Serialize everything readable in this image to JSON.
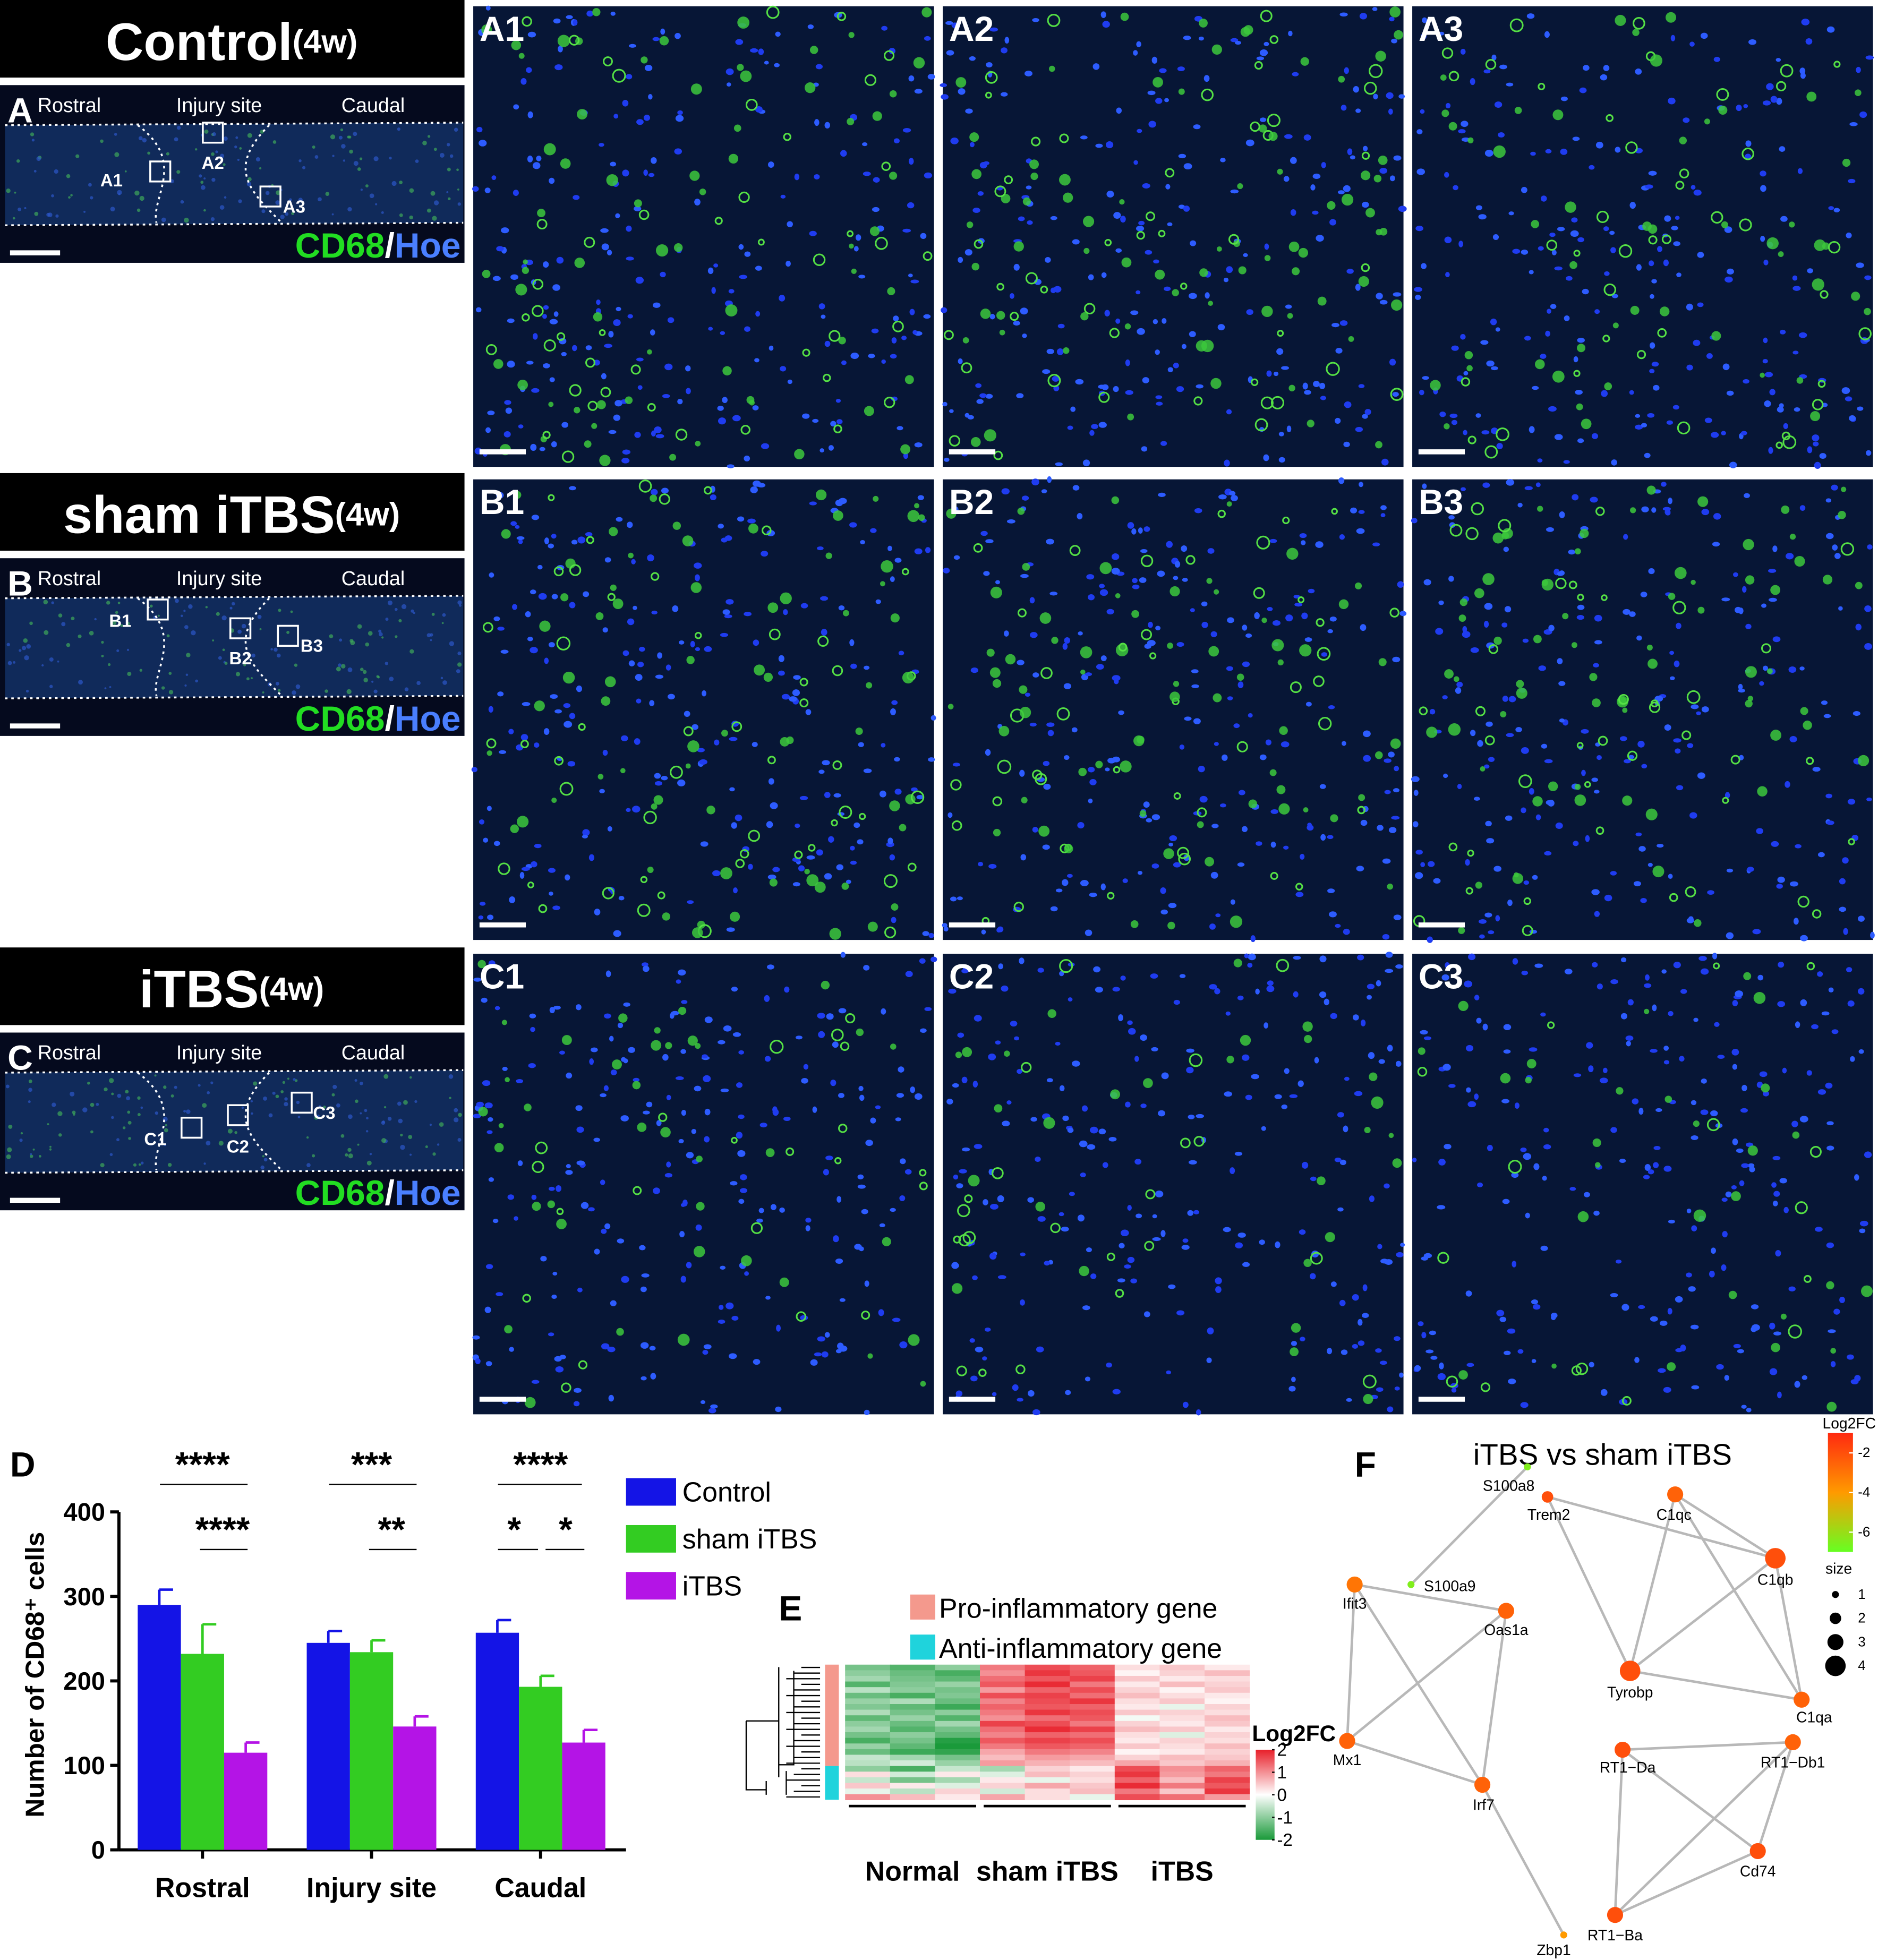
{
  "rows": [
    {
      "title": "Control",
      "suffix": "(4w)",
      "letter": "A",
      "regions": [
        "Rostral",
        "Injury site",
        "Caudal"
      ],
      "boxes": [
        "A1",
        "A2",
        "A3"
      ],
      "stain": [
        "CD68",
        "/",
        "Hoe"
      ],
      "micrographs": [
        "A1",
        "A2",
        "A3"
      ]
    },
    {
      "title": "sham iTBS",
      "suffix": "(4w)",
      "letter": "B",
      "regions": [
        "Rostral",
        "Injury site",
        "Caudal"
      ],
      "boxes": [
        "B1",
        "B2",
        "B3"
      ],
      "stain": [
        "CD68",
        "/",
        "Hoe"
      ],
      "micrographs": [
        "B1",
        "B2",
        "B3"
      ]
    },
    {
      "title": "iTBS",
      "suffix": "(4w)",
      "letter": "C",
      "regions": [
        "Rostral",
        "Injury site",
        "Caudal"
      ],
      "boxes": [
        "C1",
        "C2",
        "C3"
      ],
      "stain": [
        "CD68",
        "/",
        "Hoe"
      ],
      "micrographs": [
        "C1",
        "C2",
        "C3"
      ]
    }
  ],
  "chart_data": [
    {
      "type": "bar",
      "label": "D",
      "ylabel": "Number of CD68⁺ cells",
      "categories": [
        "Rostral",
        "Injury site",
        "Caudal"
      ],
      "series": [
        {
          "name": "Control",
          "color": "#1414e6",
          "values": [
            290,
            245,
            257
          ],
          "errors": [
            18,
            14,
            15
          ]
        },
        {
          "name": "sham iTBS",
          "color": "#33cc22",
          "values": [
            232,
            234,
            193
          ],
          "errors": [
            35,
            14,
            13
          ]
        },
        {
          "name": "iTBS",
          "color": "#b414e6",
          "values": [
            115,
            146,
            127
          ],
          "errors": [
            12,
            12,
            15
          ]
        }
      ],
      "significance": [
        [
          "****",
          "****"
        ],
        [
          "***",
          "**"
        ],
        [
          "****",
          "*",
          "*"
        ]
      ],
      "ylim": [
        0,
        400
      ],
      "yticks": [
        0,
        100,
        200,
        300,
        400
      ]
    },
    {
      "type": "heatmap",
      "label": "E",
      "categories": [
        "Normal",
        "sham iTBS",
        "iTBS"
      ],
      "colorbar_label": "Log2FC",
      "zlim": [
        -2,
        2
      ],
      "zticks": [
        2,
        1,
        0,
        -1,
        -2
      ],
      "series": [
        {
          "name": "Pro-inflammatory gene",
          "color": "#f4998d",
          "values": [
            [
              -1.2,
              -1.5,
              -1.0,
              1.2,
              1.6,
              1.4,
              0.3,
              0.5,
              0.2
            ],
            [
              -1.0,
              -1.3,
              -1.6,
              1.0,
              1.8,
              1.5,
              0.1,
              0.4,
              0.6
            ],
            [
              -0.8,
              -1.2,
              -1.4,
              1.3,
              1.5,
              1.7,
              0.5,
              0.2,
              0.3
            ],
            [
              -1.5,
              -1.1,
              -0.9,
              1.5,
              1.9,
              1.2,
              0.2,
              0.6,
              0.4
            ],
            [
              -0.6,
              -1.0,
              -1.2,
              0.9,
              1.4,
              1.6,
              0.4,
              0.1,
              0.5
            ],
            [
              -1.3,
              -1.6,
              -1.1,
              1.6,
              1.7,
              1.3,
              0.6,
              0.3,
              0.2
            ],
            [
              -0.9,
              -0.7,
              -1.3,
              1.1,
              1.6,
              1.8,
              0.3,
              0.5,
              0.1
            ],
            [
              -1.1,
              -1.4,
              -1.7,
              1.4,
              1.5,
              1.4,
              0.2,
              -0.2,
              0.4
            ],
            [
              -0.7,
              -1.2,
              -1.0,
              1.2,
              1.8,
              1.6,
              0.5,
              0.4,
              0.3
            ],
            [
              -1.4,
              -0.9,
              -1.5,
              1.0,
              1.3,
              1.5,
              -0.1,
              0.3,
              0.6
            ],
            [
              -1.0,
              -1.3,
              -0.8,
              1.7,
              1.6,
              1.2,
              0.4,
              0.2,
              0.5
            ],
            [
              -0.8,
              -1.5,
              -1.2,
              1.3,
              1.9,
              1.7,
              0.6,
              0.5,
              0.2
            ],
            [
              -1.2,
              -1.0,
              -1.4,
              1.1,
              1.4,
              1.3,
              0.3,
              -0.3,
              0.4
            ],
            [
              -1.6,
              -1.2,
              -1.9,
              1.5,
              1.7,
              1.6,
              0.2,
              0.4,
              0.3
            ],
            [
              -0.9,
              -1.4,
              -2.0,
              1.2,
              1.5,
              1.4,
              0.5,
              0.3,
              0.6
            ],
            [
              -1.3,
              -1.7,
              -1.8,
              0.8,
              1.2,
              1.1,
              0.1,
              0.2,
              0.4
            ],
            [
              -0.5,
              -0.8,
              -1.2,
              0.6,
              0.9,
              0.8,
              0.4,
              0.6,
              0.5
            ],
            [
              -0.6,
              -0.4,
              -0.9,
              0.9,
              0.7,
              0.6,
              0.8,
              0.5,
              0.7
            ]
          ]
        },
        {
          "name": "Anti-inflammatory gene",
          "color": "#1fd3dc",
          "values": [
            [
              -1.0,
              -1.6,
              -0.5,
              -0.8,
              0.4,
              0.2,
              1.6,
              1.0,
              1.4
            ],
            [
              0.3,
              -0.4,
              0.2,
              -0.3,
              0.6,
              0.4,
              1.8,
              0.9,
              1.2
            ],
            [
              -0.5,
              -1.2,
              -0.8,
              0.2,
              -0.2,
              0.3,
              1.4,
              0.6,
              1.7
            ],
            [
              0.5,
              0.2,
              -0.3,
              0.4,
              0.8,
              0.5,
              1.9,
              1.2,
              1.5
            ],
            [
              -0.2,
              -0.6,
              0.4,
              -0.4,
              0.3,
              0.6,
              1.2,
              0.5,
              1.8
            ],
            [
              1.0,
              0.6,
              0.2,
              0.8,
              0.3,
              -0.2,
              1.6,
              1.3,
              0.9
            ]
          ]
        }
      ]
    },
    {
      "type": "network",
      "label": "F",
      "title": "iTBS vs sham iTBS",
      "nodes": [
        {
          "name": "S100a8",
          "log2fc": -6.5,
          "size": 1
        },
        {
          "name": "Trem2",
          "log2fc": -2,
          "size": 2
        },
        {
          "name": "C1qc",
          "log2fc": -2.5,
          "size": 3
        },
        {
          "name": "S100a9",
          "log2fc": -6.5,
          "size": 1
        },
        {
          "name": "Ifit3",
          "log2fc": -3,
          "size": 3
        },
        {
          "name": "Oas1a",
          "log2fc": -2.5,
          "size": 3
        },
        {
          "name": "C1qb",
          "log2fc": -2,
          "size": 4
        },
        {
          "name": "Tyrobp",
          "log2fc": -2,
          "size": 4
        },
        {
          "name": "C1qa",
          "log2fc": -2.5,
          "size": 3
        },
        {
          "name": "Mx1",
          "log2fc": -2.5,
          "size": 3
        },
        {
          "name": "RT1−Da",
          "log2fc": -2,
          "size": 3
        },
        {
          "name": "RT1−Db1",
          "log2fc": -2.5,
          "size": 3
        },
        {
          "name": "Irf7",
          "log2fc": -2.5,
          "size": 3
        },
        {
          "name": "Cd74",
          "log2fc": -2,
          "size": 3
        },
        {
          "name": "RT1−Ba",
          "log2fc": -2,
          "size": 3
        },
        {
          "name": "Zbp1",
          "log2fc": -4,
          "size": 1
        }
      ],
      "edges": [
        [
          0,
          3
        ],
        [
          1,
          6
        ],
        [
          1,
          7
        ],
        [
          2,
          6
        ],
        [
          2,
          7
        ],
        [
          2,
          8
        ],
        [
          6,
          7
        ],
        [
          6,
          8
        ],
        [
          7,
          8
        ],
        [
          4,
          5
        ],
        [
          4,
          12
        ],
        [
          4,
          9
        ],
        [
          5,
          9
        ],
        [
          5,
          12
        ],
        [
          9,
          12
        ],
        [
          12,
          15
        ],
        [
          10,
          11
        ],
        [
          10,
          13
        ],
        [
          10,
          14
        ],
        [
          11,
          14
        ],
        [
          11,
          13
        ],
        [
          13,
          14
        ]
      ],
      "colorbar_label": "Log2FC",
      "clim": [
        -7,
        -1
      ],
      "cticks": [
        -2,
        -4,
        -6
      ],
      "size_label": "size",
      "sizes": [
        1,
        2,
        3,
        4
      ]
    }
  ]
}
